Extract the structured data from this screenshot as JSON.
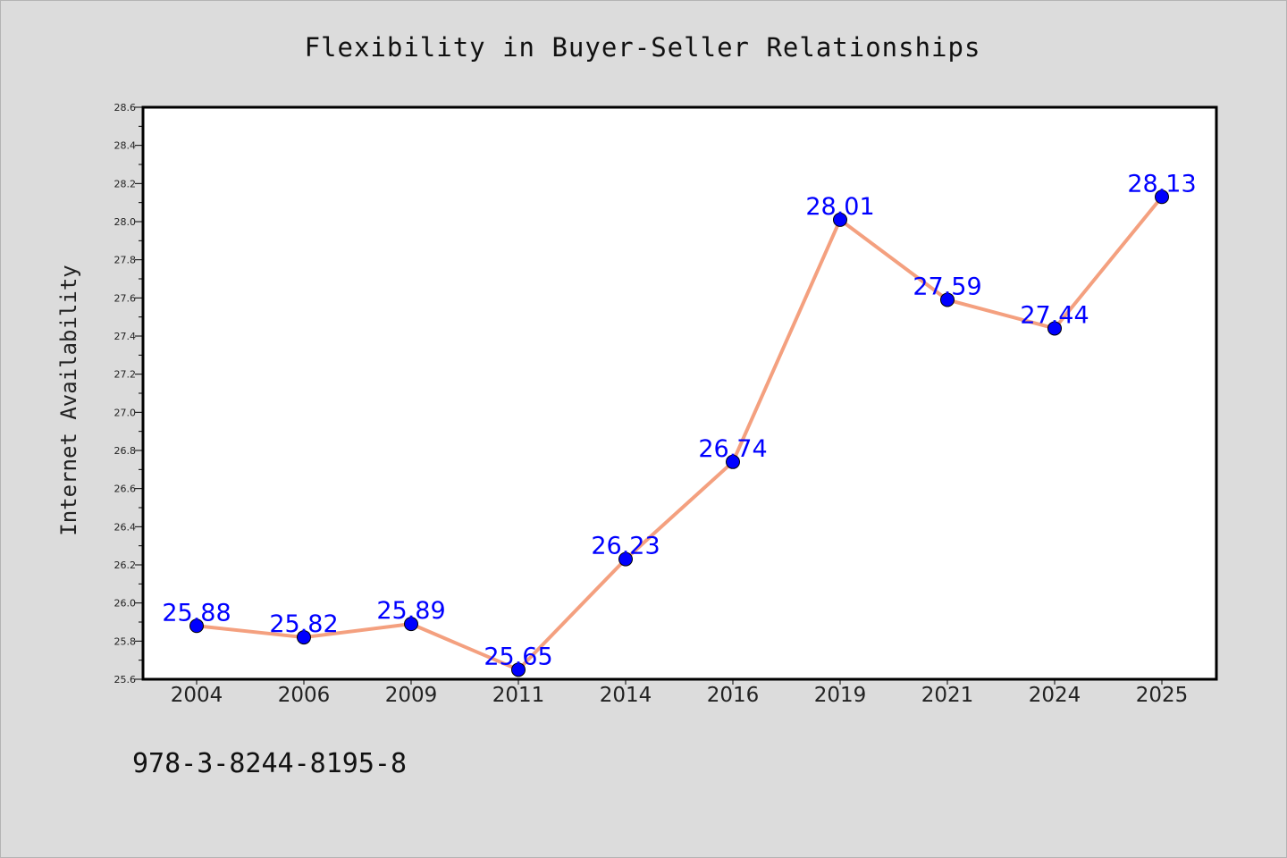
{
  "chart_data": {
    "type": "line",
    "title": "Flexibility in Buyer-Seller Relationships",
    "xlabel": "",
    "ylabel": "Internet Availability",
    "categories": [
      "2004",
      "2006",
      "2009",
      "2011",
      "2014",
      "2016",
      "2019",
      "2021",
      "2024",
      "2025"
    ],
    "series": [
      {
        "values": [
          25.88,
          25.82,
          25.89,
          25.65,
          26.23,
          26.74,
          28.01,
          27.59,
          27.44,
          28.13
        ],
        "line_color": "#f4a07f",
        "marker_color": "#0000ff"
      }
    ],
    "data_labels": [
      "25.88",
      "25.82",
      "25.89",
      "25.65",
      "26.23",
      "26.74",
      "28.01",
      "27.59",
      "27.44",
      "28.13"
    ],
    "yticks": [
      "25.6",
      "25.8",
      "26.0",
      "26.2",
      "26.4",
      "26.6",
      "26.8",
      "27.0",
      "27.2",
      "27.4",
      "27.6",
      "27.8",
      "28.0",
      "28.2",
      "28.4",
      "28.6"
    ],
    "ylim": [
      25.6,
      28.6
    ],
    "grid": false,
    "legend": "none"
  },
  "footer": {
    "text": "978-3-8244-8195-8"
  },
  "colors": {
    "background": "#dcdcdc",
    "plot_background": "#ffffff",
    "line": "#f4a07f",
    "marker": "#0000ff",
    "data_label": "#0000ff"
  }
}
